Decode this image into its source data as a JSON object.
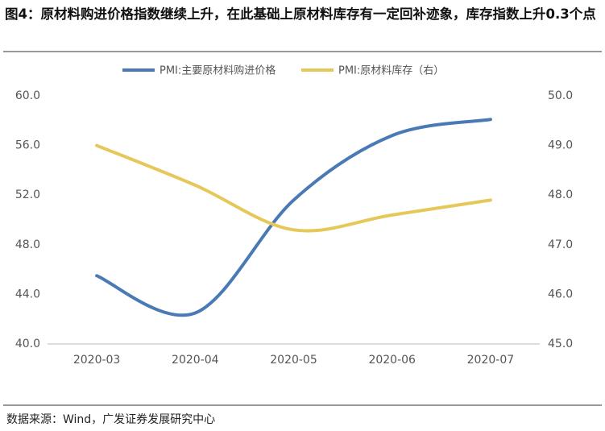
{
  "chart_data": {
    "type": "line",
    "title": "图4：原材料购进价格指数继续上升，在此基础上原材料库存有一定回补迹象，库存指数上升0.3个点",
    "source": "数据来源：Wind，广发证券发展研究中心",
    "categories": [
      "2020-03",
      "2020-04",
      "2020-05",
      "2020-06",
      "2020-07"
    ],
    "series": [
      {
        "name": "PMI:主要原材料购进价格",
        "color": "#4a7ab5",
        "values": [
          45.5,
          42.5,
          51.6,
          56.8,
          58.1
        ]
      },
      {
        "name": "PMI:原材料库存（右）",
        "color": "#e6c85a",
        "values": [
          49.0,
          48.2,
          47.3,
          47.6,
          47.9
        ],
        "axis": "y2"
      }
    ],
    "ylim": [
      40,
      60
    ],
    "yticks": [
      {
        "value": 40,
        "label": "40.0"
      },
      {
        "value": 44,
        "label": "44.0"
      },
      {
        "value": 48,
        "label": "48.0"
      },
      {
        "value": 52,
        "label": "52.0"
      },
      {
        "value": 56,
        "label": "56.0"
      },
      {
        "value": 60,
        "label": "60.0"
      }
    ],
    "y2lim": [
      45,
      50
    ],
    "y2ticks": [
      {
        "value": 45,
        "label": "45.0"
      },
      {
        "value": 46,
        "label": "46.0"
      },
      {
        "value": 47,
        "label": "47.0"
      },
      {
        "value": 48,
        "label": "48.0"
      },
      {
        "value": 49,
        "label": "49.0"
      },
      {
        "value": 50,
        "label": "50.0"
      }
    ],
    "grid": false,
    "legend": "top"
  }
}
